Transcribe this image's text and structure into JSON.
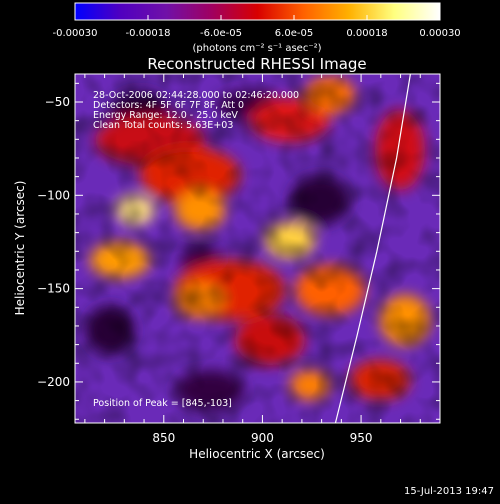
{
  "colorbar": {
    "tick_labels": [
      "-0.00030",
      "-0.00018",
      "-6.0e-05",
      "6.0e-05",
      "0.00018",
      "0.00030"
    ],
    "tick_values": [
      -0.0003,
      -0.00018,
      -6e-05,
      6e-05,
      0.00018,
      0.0003
    ],
    "range": [
      -0.0003,
      0.0003
    ],
    "unit_label": "(photons cm⁻² s⁻¹ asec⁻²)",
    "gradient": [
      "#0000ff",
      "#5000c0",
      "#7010a8",
      "#a00060",
      "#d80000",
      "#ff6000",
      "#ffb000",
      "#ffff80",
      "#ffffff"
    ]
  },
  "chart_data": {
    "type": "heatmap",
    "title": "Reconstructed RHESSI Image",
    "xlabel": "Heliocentric X (arcsec)",
    "ylabel": "Heliocentric Y (arcsec)",
    "xlim": [
      805,
      990
    ],
    "ylim": [
      -222,
      -35
    ],
    "x_ticks": [
      850,
      900,
      950
    ],
    "y_ticks": [
      -50,
      -100,
      -150,
      -200
    ],
    "annotations": [
      "28-Oct-2006 02:44:28.000 to 02:46:20.000",
      "Detectors: 4F 5F 6F 7F 8F, Att 0",
      "Energy Range: 12.0 - 25.0 keV",
      "Clean    Total counts: 5.63E+03"
    ],
    "peak_label": "Position of Peak = [845,-103]",
    "peak_position": [
      845,
      -103
    ],
    "limb_curve": [
      [
        975,
        -35
      ],
      [
        968,
        -80
      ],
      [
        958,
        -130
      ],
      [
        948,
        -175
      ],
      [
        937,
        -222
      ]
    ]
  },
  "footer": {
    "timestamp": "15-Jul-2013 19:47"
  },
  "colors": {
    "background": "#000000",
    "axes": "#ffffff",
    "limb": "#ffffff"
  }
}
